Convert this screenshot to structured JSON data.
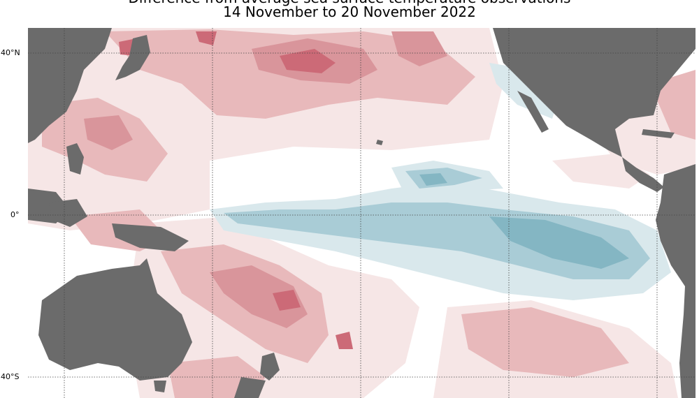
{
  "title_line1": "Difference from average sea surface temperature observations",
  "title_line2": "14 November to 20 November 2022",
  "latitude_labels": {
    "north40": "40°N",
    "equator": "0°",
    "south40": "40°S"
  },
  "colors": {
    "land": "#6b6b6b",
    "ocean": "#ffffff",
    "warm_1": "#f6e6e6",
    "warm_2": "#e8b9bb",
    "warm_3": "#d9959b",
    "warm_4": "#cc6a77",
    "cool_1": "#d9e8ec",
    "cool_2": "#a9ccd6",
    "cool_3": "#84b6c3",
    "gridline": "#444444"
  }
}
